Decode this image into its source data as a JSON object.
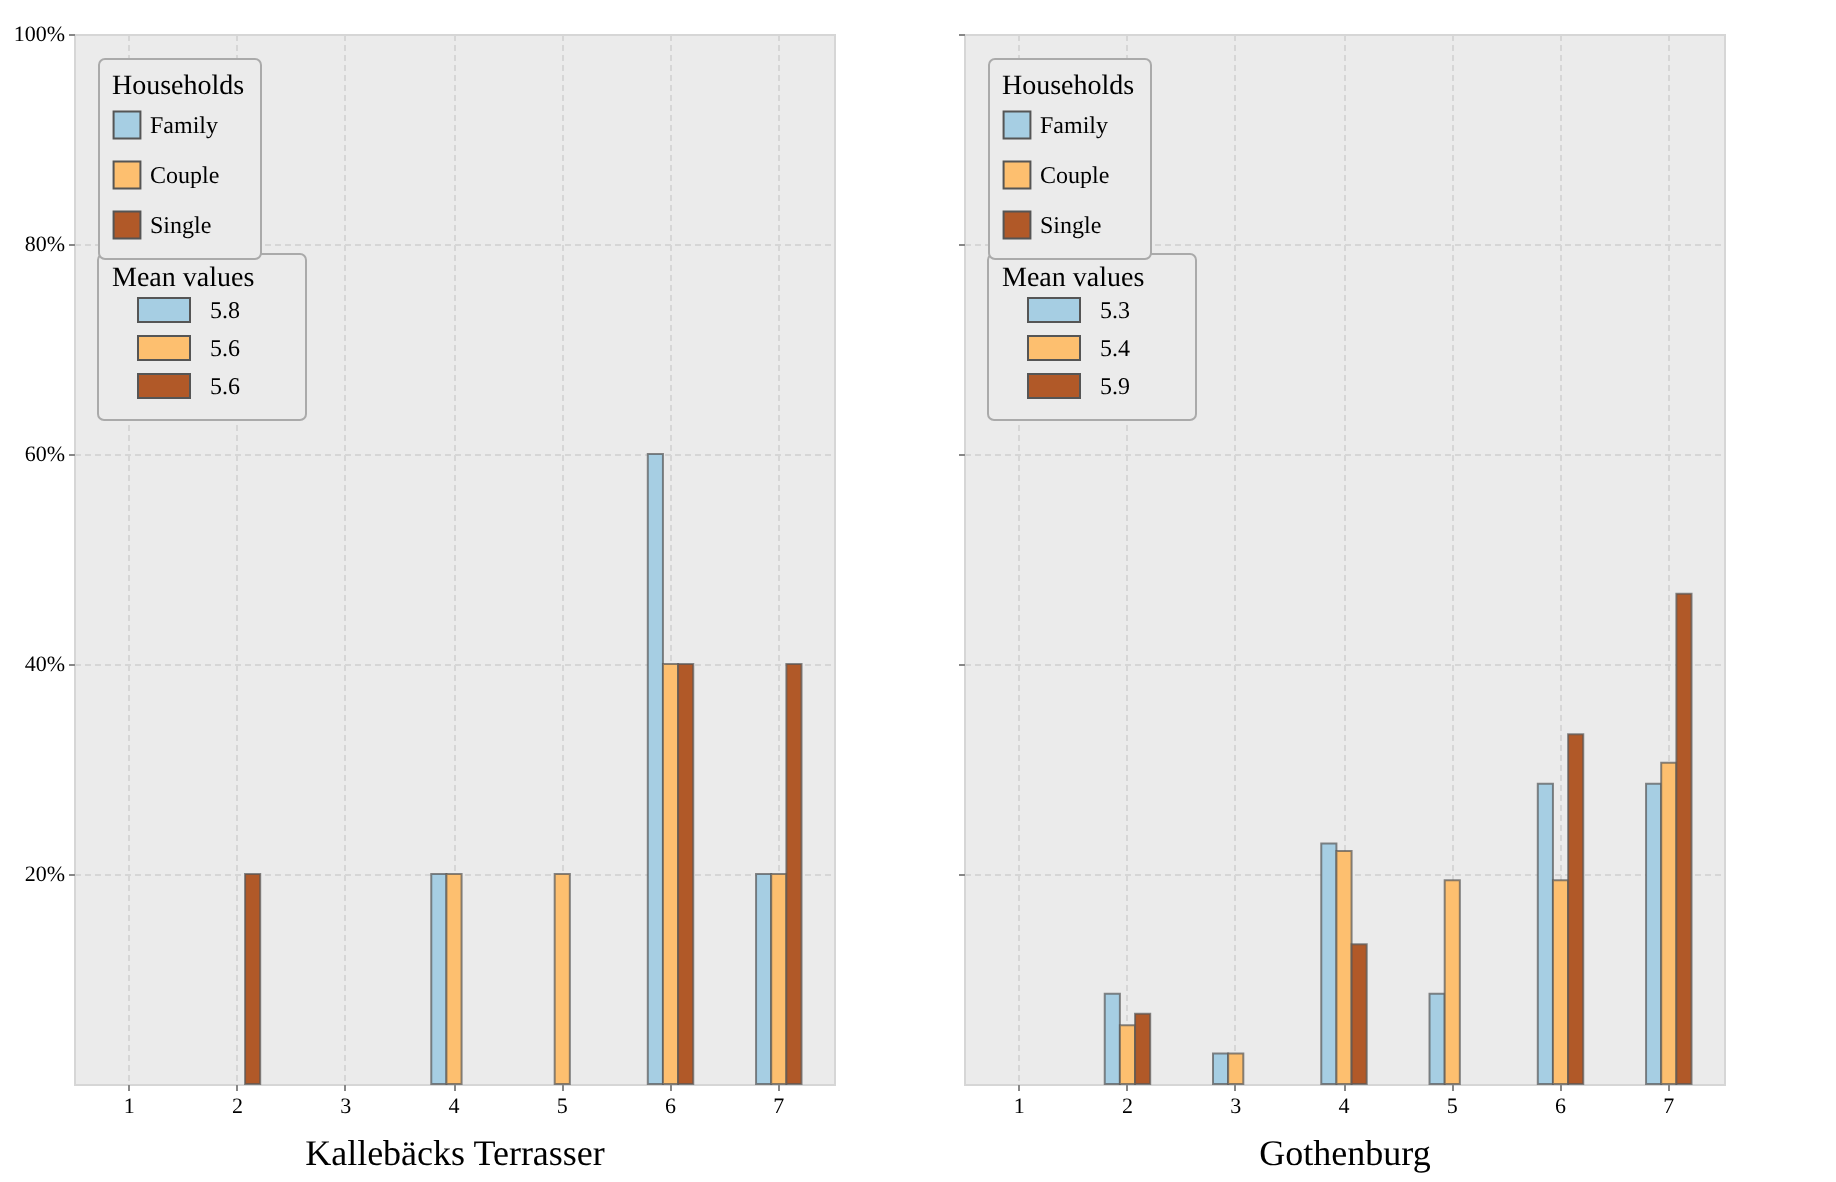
{
  "chart_data": [
    {
      "type": "bar",
      "xlabel": "Kallebäcks Terrasser",
      "legend_title": "Households",
      "legend": "top left",
      "grid": true,
      "categories": [
        "1",
        "2",
        "3",
        "4",
        "5",
        "6",
        "7"
      ],
      "ylim": [
        0,
        100
      ],
      "yticks": [
        {
          "value": 20,
          "label": "20%"
        },
        {
          "value": 40,
          "label": "40%"
        },
        {
          "value": 60,
          "label": "60%"
        },
        {
          "value": 80,
          "label": "80%"
        },
        {
          "value": 100,
          "label": "100%"
        }
      ],
      "series": [
        {
          "name": "Family",
          "color": "#a6cee3",
          "values": [
            0,
            0,
            0,
            20,
            0,
            60,
            20
          ]
        },
        {
          "name": "Couple",
          "color": "#fdbf6f",
          "values": [
            0,
            0,
            0,
            20,
            20,
            40,
            20
          ]
        },
        {
          "name": "Single",
          "color": "#b15928",
          "values": [
            0,
            20,
            0,
            0,
            0,
            40,
            40
          ]
        }
      ],
      "annotations": [
        "Mean values",
        "5.8",
        "5.6",
        "5.6"
      ]
    },
    {
      "type": "bar",
      "xlabel": "Gothenburg",
      "legend_title": "Households",
      "legend": "top left",
      "grid": true,
      "tick_labels": "x",
      "categories": [
        "1",
        "2",
        "3",
        "4",
        "5",
        "6",
        "7"
      ],
      "ylim": [
        0,
        100
      ],
      "yticks": [
        {
          "value": 20,
          "label": null
        },
        {
          "value": 40,
          "label": null
        },
        {
          "value": 60,
          "label": null
        },
        {
          "value": 80,
          "label": null
        },
        {
          "value": 100,
          "label": null
        }
      ],
      "series": [
        {
          "name": "Family",
          "color": "#a6cee3",
          "values": [
            0,
            8.6,
            2.9,
            22.9,
            8.6,
            28.6,
            28.6
          ]
        },
        {
          "name": "Couple",
          "color": "#fdbf6f",
          "values": [
            0,
            5.6,
            2.9,
            22.2,
            19.4,
            19.4,
            30.6
          ]
        },
        {
          "name": "Single",
          "color": "#b15928",
          "values": [
            0,
            6.7,
            0,
            13.3,
            0,
            33.3,
            46.7
          ]
        }
      ],
      "annotations": [
        "Mean values",
        "5.3",
        "5.4",
        "5.9"
      ]
    }
  ]
}
